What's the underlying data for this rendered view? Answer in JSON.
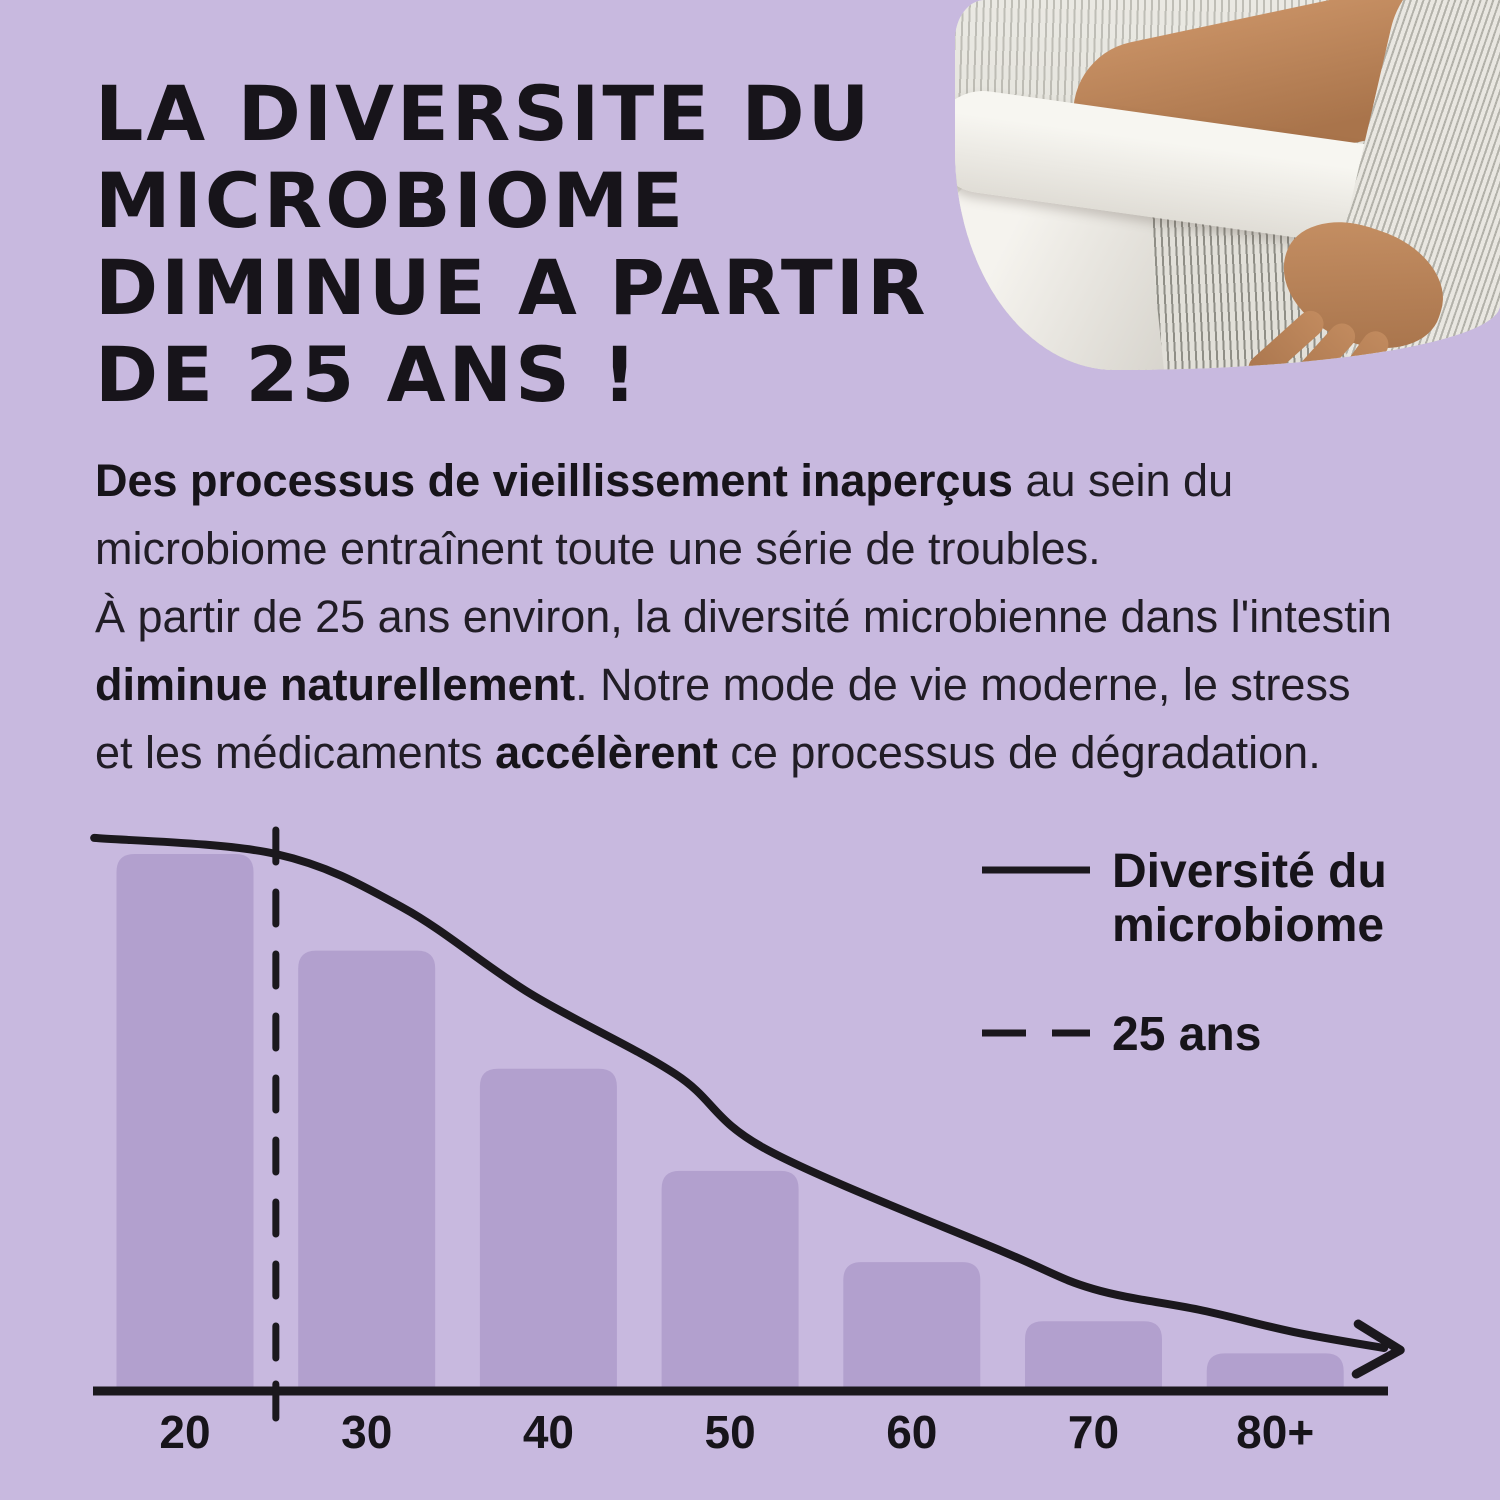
{
  "page": {
    "background_color": "#c8b9df",
    "title_color": "#17141a",
    "text_color": "#211d26"
  },
  "title": {
    "lines": [
      "LA DIVERSITE DU",
      "MICROBIOME",
      "DIMINUE A PARTIR",
      "DE 25 ANS !"
    ]
  },
  "intro": {
    "bold1": "Des processus de vieillissement inaperçus",
    "text1": " au sein du microbiome entraînent toute une série de troubles.",
    "text2": "À partir de 25 ans environ, la diversité microbienne dans l'intestin ",
    "bold2": "diminue naturellement",
    "text3": ". Notre mode de vie moderne, le stress et les médicaments ",
    "bold3": "accélèrent",
    "text4": " ce processus de dégradation."
  },
  "chart_data": {
    "type": "bar",
    "title": "",
    "xlabel": "",
    "ylabel": "",
    "grid": false,
    "categories": [
      "20",
      "30",
      "40",
      "50",
      "60",
      "70",
      "80+"
    ],
    "values": [
      100,
      82,
      60,
      41,
      24,
      13,
      7
    ],
    "values_unit": "% of maximum microbiome diversity (estimated from bar heights, no y-axis shown)",
    "ylim": [
      0,
      105
    ],
    "bar_color": "#b2a0ce",
    "line_color": "#1b181d",
    "overlay_line": {
      "name": "Diversité du microbiome",
      "x": [
        15,
        25,
        32,
        39,
        47,
        52,
        65,
        70,
        76,
        81,
        86
      ],
      "y": [
        103,
        100,
        90,
        74,
        59,
        45,
        26,
        19,
        15,
        11,
        8
      ]
    },
    "reference_line": {
      "label": "25 ans",
      "x": 25,
      "style": "dashed"
    },
    "legend_position": "upper right",
    "legend": [
      {
        "style": "solid",
        "label_lines": [
          "Diversité du",
          "microbiome"
        ]
      },
      {
        "style": "dashed",
        "label_lines": [
          "25 ans"
        ]
      }
    ]
  }
}
